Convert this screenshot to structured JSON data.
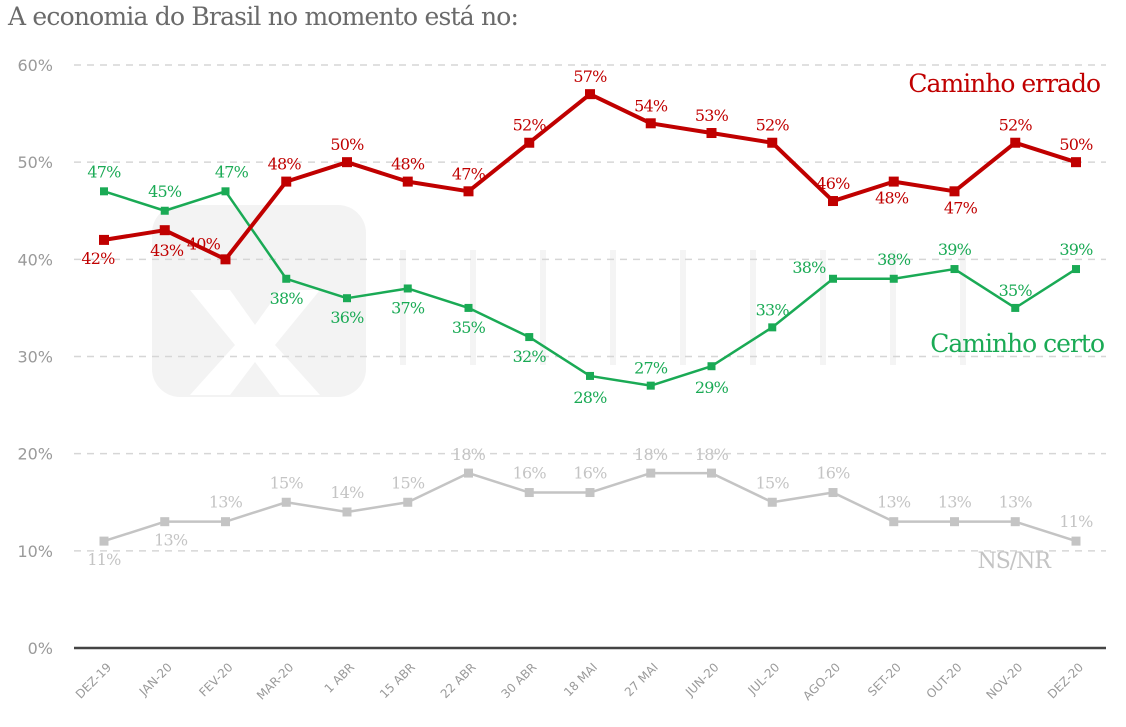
{
  "chart_data": {
    "type": "line",
    "title": "A economia do Brasil no momento está no:",
    "xlabel": "",
    "ylabel": "",
    "ylim": [
      0,
      60
    ],
    "yticks": [
      0,
      10,
      20,
      30,
      40,
      50,
      60
    ],
    "ytick_labels": [
      "0%",
      "10%",
      "20%",
      "30%",
      "40%",
      "50%",
      "60%"
    ],
    "grid": true,
    "categories": [
      "DEZ-19",
      "JAN-20",
      "FEV-20",
      "MAR-20",
      "1 ABR",
      "15 ABR",
      "22 ABR",
      "30 ABR",
      "18 MAI",
      "27 MAI",
      "JUN-20",
      "JUL-20",
      "AGO-20",
      "SET-20",
      "OUT-20",
      "NOV-20",
      "DEZ-20"
    ],
    "watermark": "xp investimentos",
    "series": [
      {
        "name": "Caminho errado",
        "color": "#c00000",
        "values": [
          42,
          43,
          40,
          48,
          50,
          48,
          47,
          52,
          57,
          54,
          53,
          52,
          46,
          48,
          47,
          52,
          50
        ],
        "labels": [
          "42%",
          "43%",
          "40%",
          "48%",
          "50%",
          "48%",
          "47%",
          "52%",
          "57%",
          "54%",
          "53%",
          "52%",
          "46%",
          "48%",
          "47%",
          "52%",
          "50%"
        ]
      },
      {
        "name": "Caminho certo",
        "color": "#1aaa55",
        "values": [
          47,
          45,
          47,
          38,
          36,
          37,
          35,
          32,
          28,
          27,
          29,
          33,
          38,
          38,
          39,
          35,
          39
        ],
        "labels": [
          "47%",
          "45%",
          "47%",
          "38%",
          "36%",
          "37%",
          "35%",
          "32%",
          "28%",
          "27%",
          "29%",
          "33%",
          "38%",
          "38%",
          "39%",
          "35%",
          "39%"
        ]
      },
      {
        "name": "NS/NR",
        "color": "#c4c4c4",
        "values": [
          11,
          13,
          13,
          15,
          14,
          15,
          18,
          16,
          16,
          18,
          18,
          15,
          16,
          13,
          13,
          13,
          11
        ],
        "labels": [
          "11%",
          "13%",
          "13%",
          "15%",
          "14%",
          "15%",
          "18%",
          "16%",
          "16%",
          "18%",
          "18%",
          "15%",
          "16%",
          "13%",
          "13%",
          "13%",
          "11%"
        ]
      }
    ]
  }
}
